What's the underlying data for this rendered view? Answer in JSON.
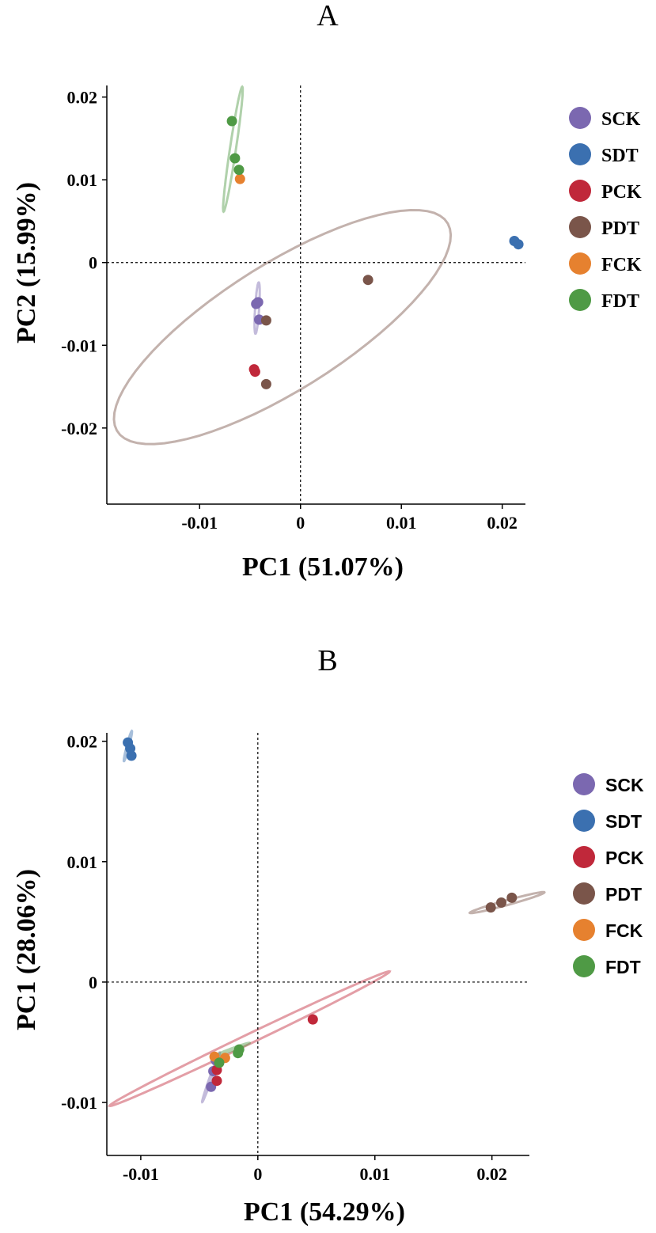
{
  "colors": {
    "SCK": "#7b68b0",
    "SDT": "#3b70b0",
    "PCK": "#c0283a",
    "PDT": "#7a554a",
    "FCK": "#e6812f",
    "FDT": "#4f9a45"
  },
  "chart_data": [
    {
      "type": "scatter",
      "title": "A",
      "xlabel": "PC1 (51.07%)",
      "ylabel": "PC2 (15.99%)",
      "xlim": [
        -0.0192,
        0.0223
      ],
      "ylim": [
        -0.0292,
        0.0214
      ],
      "xticks": [
        -0.01,
        0,
        0.01,
        0.02
      ],
      "xtick_labels": [
        "-0.01",
        "0",
        "0.01",
        "0.02"
      ],
      "yticks": [
        0.02,
        0.01,
        0,
        -0.01,
        -0.02
      ],
      "ytick_labels": [
        "0.02",
        "0.01",
        "0",
        "-0.01",
        "-0.02"
      ],
      "legend": [
        "SCK",
        "SDT",
        "PCK",
        "PDT",
        "FCK",
        "FDT"
      ],
      "series": [
        {
          "name": "SCK",
          "x": [
            -0.0044,
            -0.0042,
            -0.0041
          ],
          "y": [
            -0.005,
            -0.0048,
            -0.0069
          ]
        },
        {
          "name": "SDT",
          "x": [
            0.0212,
            0.0216
          ],
          "y": [
            0.0026,
            0.0022
          ]
        },
        {
          "name": "PCK",
          "x": [
            -0.0046,
            -0.0045
          ],
          "y": [
            -0.0129,
            -0.0132
          ]
        },
        {
          "name": "PDT",
          "x": [
            0.0067,
            -0.0034,
            -0.0034
          ],
          "y": [
            -0.0021,
            -0.007,
            -0.0147
          ]
        },
        {
          "name": "FCK",
          "x": [
            -0.006
          ],
          "y": [
            0.0101
          ]
        },
        {
          "name": "FDT",
          "x": [
            -0.0068,
            -0.0065,
            -0.0061
          ],
          "y": [
            0.0171,
            0.0126,
            0.0112
          ]
        }
      ],
      "ellipses": [
        {
          "group": "PDT",
          "cx": -0.0018,
          "cy": -0.0078,
          "rx": 0.0207,
          "ry": 0.0071,
          "angle_deg": -39
        },
        {
          "group": "FDT",
          "cx": -0.0067,
          "cy": 0.0137,
          "rx": 0.0076,
          "ry": 0.0003,
          "angle_deg": -83
        },
        {
          "group": "SCK",
          "cx": -0.0043,
          "cy": -0.0055,
          "rx": 0.0031,
          "ry": 0.0002,
          "angle_deg": -87
        }
      ]
    },
    {
      "type": "scatter",
      "title": "B",
      "xlabel": "PC1 (54.29%)",
      "ylabel": "PC1 (28.06%)",
      "xlim": [
        -0.0129,
        0.0232
      ],
      "ylim": [
        -0.0144,
        0.0207
      ],
      "xticks": [
        -0.01,
        0,
        0.01,
        0.02
      ],
      "xtick_labels": [
        "-0.01",
        "0",
        "0.01",
        "0.02"
      ],
      "yticks": [
        0.02,
        0.01,
        0,
        -0.01
      ],
      "ytick_labels": [
        "0.02",
        "0.01",
        "0",
        "-0.01"
      ],
      "legend": [
        "SCK",
        "SDT",
        "PCK",
        "PDT",
        "FCK",
        "FDT"
      ],
      "series": [
        {
          "name": "SCK",
          "x": [
            -0.0036,
            -0.0038,
            -0.004
          ],
          "y": [
            -0.0065,
            -0.0074,
            -0.0087
          ]
        },
        {
          "name": "SDT",
          "x": [
            -0.0111,
            -0.0109,
            -0.0108
          ],
          "y": [
            0.0199,
            0.0194,
            0.0188
          ]
        },
        {
          "name": "PCK",
          "x": [
            0.0047,
            -0.0035,
            -0.0035
          ],
          "y": [
            -0.0031,
            -0.0073,
            -0.0082
          ]
        },
        {
          "name": "PDT",
          "x": [
            0.0199,
            0.0208,
            0.0217
          ],
          "y": [
            0.0062,
            0.0066,
            0.007
          ]
        },
        {
          "name": "FCK",
          "x": [
            -0.0037,
            -0.0028
          ],
          "y": [
            -0.0062,
            -0.0063
          ]
        },
        {
          "name": "FDT",
          "x": [
            -0.0016,
            -0.0017,
            -0.0033
          ],
          "y": [
            -0.0056,
            -0.0059,
            -0.0067
          ]
        }
      ],
      "ellipses": [
        {
          "group": "PCK",
          "cx": -0.0007,
          "cy": -0.0047,
          "rx": 0.0132,
          "ry": 0.0004,
          "angle_deg": -25
        },
        {
          "group": "PDT",
          "cx": 0.0213,
          "cy": 0.0066,
          "rx": 0.0033,
          "ry": 0.0002,
          "angle_deg": -15
        },
        {
          "group": "SCK",
          "cx": -0.004,
          "cy": -0.0079,
          "rx": 0.0022,
          "ry": 0.0001,
          "angle_deg": -70
        },
        {
          "group": "SDT",
          "cx": -0.0111,
          "cy": 0.0196,
          "rx": 0.0013,
          "ry": 0.0001,
          "angle_deg": -75
        },
        {
          "group": "FDT",
          "cx": -0.0022,
          "cy": -0.0056,
          "rx": 0.0016,
          "ry": 0.0001,
          "angle_deg": -20
        }
      ]
    }
  ]
}
